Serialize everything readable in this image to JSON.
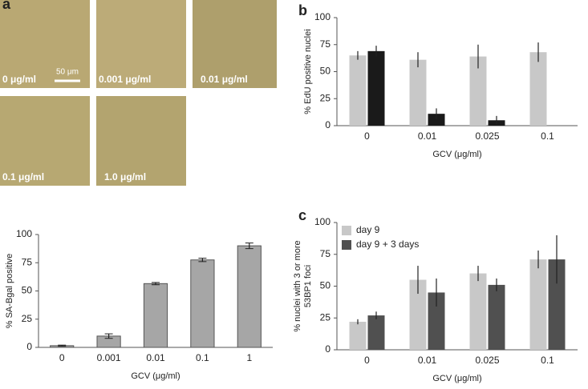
{
  "panel_labels": [
    "a",
    "b",
    "c"
  ],
  "micrographs": {
    "labels": [
      "0 μg/ml",
      "0.001 μg/ml",
      "0.01 μg/ml",
      "0.1 μg/ml",
      "1.0 μg/ml"
    ],
    "scale_bar": "50 μm"
  },
  "chart_data": [
    {
      "type": "bar",
      "ylabel": [
        "% SA-Bgal positive"
      ],
      "xlabel": "GCV (μg/ml)",
      "categories": [
        "0",
        "0.001",
        "0.01",
        "0.1",
        "1"
      ],
      "series": [
        {
          "color": "#a6a6a6",
          "values": [
            1.5,
            10,
            56.5,
            77.5,
            90
          ],
          "errors": [
            0.5,
            2,
            1,
            1.5,
            2.5
          ]
        }
      ],
      "ylim": [
        0,
        100
      ],
      "yticks": [
        0,
        25,
        50,
        75,
        100
      ],
      "error_bar_caps": true
    },
    {
      "type": "bar",
      "ylabel": [
        "% EdU positive nuclei"
      ],
      "xlabel": "GCV (μg/ml)",
      "categories": [
        "0",
        "0.01",
        "0.025",
        "0.1"
      ],
      "series": [
        {
          "color": "#c8c8c8",
          "values": [
            65,
            61,
            64,
            68
          ],
          "errors": [
            4,
            7,
            11,
            9
          ]
        },
        {
          "color": "#1a1a1a",
          "values": [
            69,
            11,
            5,
            null
          ],
          "errors": [
            5,
            5,
            4,
            null
          ]
        }
      ],
      "ylim": [
        0,
        100
      ],
      "yticks": [
        0,
        25,
        50,
        75,
        100
      ],
      "error_bar_caps": false
    },
    {
      "type": "bar",
      "ylabel": [
        "% nuclei with 3 or more",
        "53BP1 foci"
      ],
      "xlabel": "GCV (μg/ml)",
      "categories": [
        "0",
        "0.01",
        "0.025",
        "0.1"
      ],
      "series": [
        {
          "name": "day 9",
          "color": "#c8c8c8",
          "values": [
            22,
            55,
            60,
            71
          ],
          "errors": [
            2,
            11,
            6,
            7
          ]
        },
        {
          "name": "day 9 + 3 days",
          "color": "#505050",
          "values": [
            27,
            45,
            51,
            71
          ],
          "errors": [
            3,
            11,
            5,
            19
          ]
        }
      ],
      "ylim": [
        0,
        100
      ],
      "yticks": [
        0,
        25,
        50,
        75,
        100
      ],
      "error_bar_caps": false,
      "legend": "top-left"
    }
  ]
}
